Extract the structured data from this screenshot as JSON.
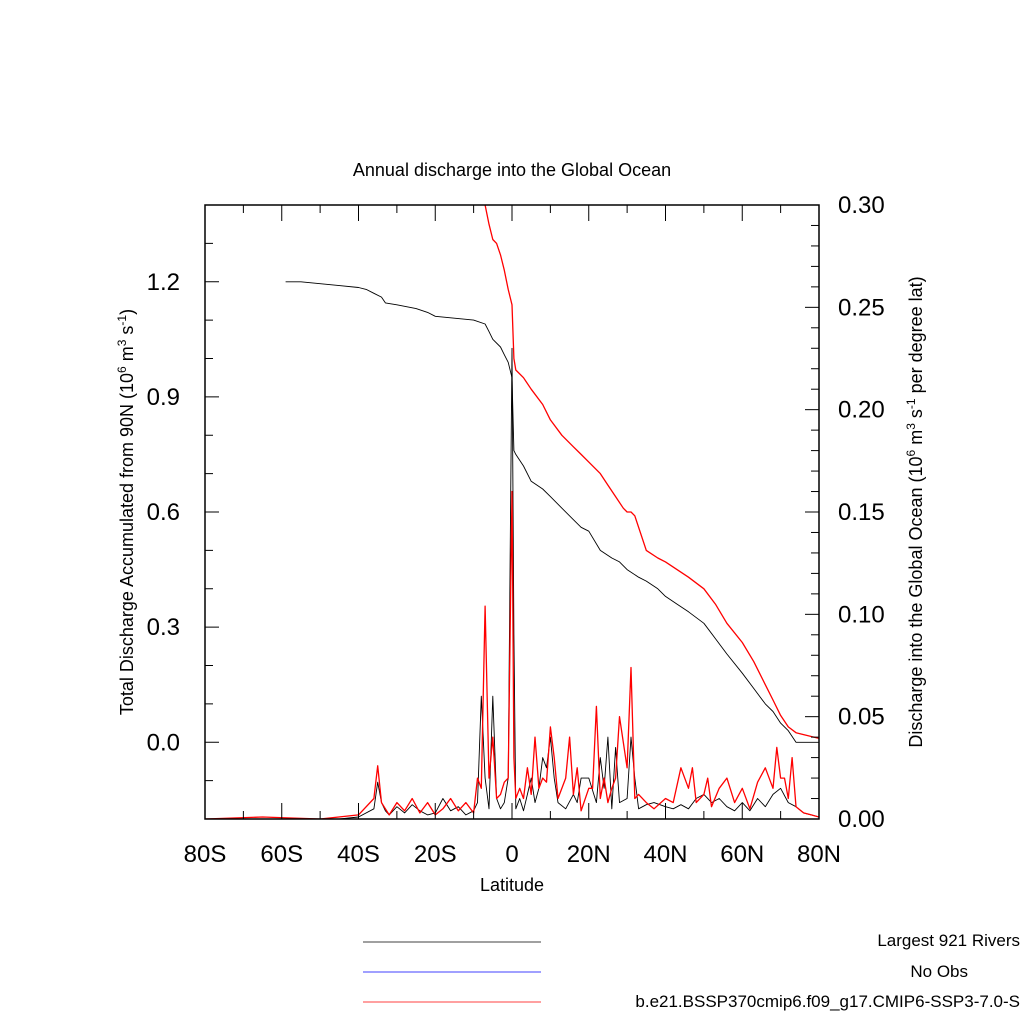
{
  "chart_data": {
    "type": "line",
    "title": "Annual discharge into the Global Ocean",
    "xlabel": "Latitude",
    "ylabel_left": "Total Discharge Accumulated from 90N (10^6 m^3 s^-1)",
    "ylabel_right": "Discharge into the Global Ocean (10^6 m^3 s^-1 per degree lat)",
    "xlim": [
      -80,
      80
    ],
    "ylim_left": [
      -0.2,
      1.4
    ],
    "ylim_right": [
      0.0,
      0.3
    ],
    "x_ticks": [
      "80S",
      "60S",
      "40S",
      "20S",
      "0",
      "20N",
      "40N",
      "60N",
      "80N"
    ],
    "y_left_ticks": [
      "0.0",
      "0.3",
      "0.6",
      "0.9",
      "1.2"
    ],
    "y_right_ticks": [
      "0.00",
      "0.05",
      "0.10",
      "0.15",
      "0.20",
      "0.25",
      "0.30"
    ],
    "grid": false,
    "legend": {
      "position": "bottom",
      "entries": [
        {
          "label": "Largest 921 Rivers",
          "color": "#000000"
        },
        {
          "label": "No Obs",
          "color": "#0000ff"
        },
        {
          "label": "b.e21.BSSP370cmip6.f09_g17.CMIP6-SSP3-7.0-S",
          "color": "#ff0000"
        }
      ]
    },
    "series": [
      {
        "name": "Largest 921 Rivers",
        "color": "#000000",
        "axis": "left",
        "x": [
          -59,
          -55,
          -50,
          -45,
          -40,
          -38,
          -36,
          -34,
          -33,
          -30,
          -25,
          -22,
          -20,
          -15,
          -10,
          -7,
          -6,
          -5,
          -3,
          -2,
          -1,
          0,
          0.5,
          1,
          3,
          5,
          8,
          10,
          13,
          16,
          18,
          20,
          23,
          26,
          28,
          30,
          33,
          35,
          38,
          40,
          43,
          46,
          50,
          53,
          56,
          60,
          63,
          66,
          68,
          70,
          72,
          74,
          76,
          78,
          80
        ],
        "y": [
          1.2,
          1.2,
          1.195,
          1.19,
          1.185,
          1.18,
          1.17,
          1.16,
          1.145,
          1.14,
          1.13,
          1.12,
          1.11,
          1.105,
          1.1,
          1.09,
          1.07,
          1.05,
          1.03,
          1.01,
          0.99,
          0.95,
          0.76,
          0.75,
          0.72,
          0.68,
          0.66,
          0.64,
          0.61,
          0.58,
          0.56,
          0.55,
          0.5,
          0.48,
          0.47,
          0.45,
          0.43,
          0.42,
          0.4,
          0.38,
          0.36,
          0.34,
          0.31,
          0.27,
          0.23,
          0.18,
          0.14,
          0.1,
          0.08,
          0.05,
          0.03,
          0.0,
          0.0,
          0.0,
          0.0
        ]
      },
      {
        "name": "b.e21.BSSP370cmip6.f09_g17.CMIP6-SSP3-7.0-S",
        "color": "#ff0000",
        "axis": "left",
        "x": [
          -7,
          -6,
          -5,
          -4,
          -3,
          -2,
          -1,
          0,
          0.5,
          1,
          3,
          5,
          8,
          10,
          13,
          16,
          18,
          20,
          23,
          25,
          27,
          29,
          30,
          31,
          32,
          35,
          38,
          40,
          43,
          46,
          50,
          53,
          56,
          60,
          63,
          66,
          68,
          70,
          72,
          74,
          76,
          78,
          80
        ],
        "y": [
          1.4,
          1.35,
          1.31,
          1.3,
          1.27,
          1.23,
          1.18,
          1.14,
          1.0,
          0.97,
          0.95,
          0.92,
          0.88,
          0.84,
          0.8,
          0.77,
          0.75,
          0.73,
          0.7,
          0.67,
          0.64,
          0.61,
          0.6,
          0.6,
          0.59,
          0.5,
          0.48,
          0.47,
          0.45,
          0.43,
          0.4,
          0.36,
          0.31,
          0.26,
          0.21,
          0.15,
          0.11,
          0.07,
          0.04,
          0.025,
          0.02,
          0.015,
          0.01
        ]
      },
      {
        "name": "Largest 921 Rivers",
        "color": "#000000",
        "axis": "right",
        "x": [
          -80,
          -60,
          -45,
          -40,
          -36,
          -35,
          -34,
          -33,
          -32,
          -30,
          -28,
          -26,
          -24,
          -22,
          -20,
          -18,
          -16,
          -14,
          -12,
          -10,
          -9,
          -8,
          -7,
          -6,
          -5,
          -4,
          -3,
          -2,
          -1,
          0,
          0.5,
          1,
          2,
          3,
          4,
          5,
          6,
          7,
          8,
          9,
          10,
          11,
          12,
          14,
          16,
          17,
          18,
          20,
          22,
          23,
          24,
          25,
          26,
          27,
          28,
          30,
          31,
          32,
          33,
          35,
          37,
          40,
          42,
          44,
          46,
          48,
          50,
          52,
          54,
          56,
          58,
          60,
          62,
          64,
          66,
          68,
          70,
          72,
          74,
          76,
          78,
          80
        ],
        "y": [
          0.0,
          0.0,
          0.0,
          0.001,
          0.005,
          0.018,
          0.008,
          0.004,
          0.002,
          0.006,
          0.003,
          0.007,
          0.004,
          0.002,
          0.003,
          0.01,
          0.004,
          0.006,
          0.002,
          0.004,
          0.008,
          0.06,
          0.02,
          0.005,
          0.06,
          0.01,
          0.005,
          0.008,
          0.02,
          0.23,
          0.09,
          0.005,
          0.01,
          0.004,
          0.012,
          0.02,
          0.008,
          0.015,
          0.03,
          0.025,
          0.04,
          0.02,
          0.008,
          0.005,
          0.012,
          0.008,
          0.02,
          0.02,
          0.008,
          0.03,
          0.015,
          0.04,
          0.005,
          0.035,
          0.008,
          0.01,
          0.04,
          0.02,
          0.005,
          0.007,
          0.008,
          0.006,
          0.005,
          0.007,
          0.005,
          0.01,
          0.012,
          0.008,
          0.01,
          0.006,
          0.004,
          0.008,
          0.004,
          0.01,
          0.006,
          0.012,
          0.015,
          0.008,
          0.006,
          0.003,
          0.002,
          0.001
        ]
      },
      {
        "name": "b.e21.BSSP370cmip6.f09_g17.CMIP6-SSP3-7.0-S",
        "color": "#ff0000",
        "axis": "right",
        "x": [
          -80,
          -65,
          -50,
          -40,
          -36,
          -35,
          -34,
          -33,
          -32,
          -30,
          -28,
          -26,
          -24,
          -22,
          -20,
          -18,
          -16,
          -14,
          -12,
          -10,
          -9,
          -8,
          -7,
          -6,
          -5,
          -4,
          -3,
          -2,
          -1,
          0,
          0.5,
          1,
          2,
          3,
          4,
          5,
          6,
          7,
          8,
          9,
          10,
          11,
          12,
          14,
          15,
          16,
          17,
          18,
          20,
          21,
          22,
          23,
          24,
          25,
          26,
          27,
          28,
          30,
          31,
          32,
          33,
          35,
          37,
          40,
          42,
          44,
          46,
          47,
          48,
          50,
          51,
          52,
          54,
          56,
          58,
          60,
          62,
          64,
          66,
          68,
          69,
          70,
          71,
          72,
          73,
          74,
          76,
          78,
          80
        ],
        "y": [
          0.0,
          0.001,
          0.0,
          0.002,
          0.01,
          0.026,
          0.008,
          0.005,
          0.002,
          0.008,
          0.004,
          0.01,
          0.003,
          0.008,
          0.002,
          0.005,
          0.01,
          0.004,
          0.008,
          0.003,
          0.02,
          0.015,
          0.104,
          0.02,
          0.04,
          0.01,
          0.012,
          0.018,
          0.02,
          0.16,
          0.03,
          0.01,
          0.015,
          0.01,
          0.025,
          0.012,
          0.04,
          0.015,
          0.02,
          0.018,
          0.045,
          0.03,
          0.01,
          0.02,
          0.04,
          0.012,
          0.025,
          0.004,
          0.015,
          0.015,
          0.055,
          0.01,
          0.02,
          0.008,
          0.015,
          0.02,
          0.05,
          0.025,
          0.074,
          0.01,
          0.012,
          0.008,
          0.005,
          0.01,
          0.008,
          0.025,
          0.015,
          0.025,
          0.008,
          0.012,
          0.02,
          0.006,
          0.015,
          0.02,
          0.008,
          0.015,
          0.005,
          0.018,
          0.025,
          0.015,
          0.035,
          0.02,
          0.02,
          0.01,
          0.03,
          0.006,
          0.003,
          0.002,
          0.001
        ]
      }
    ]
  }
}
